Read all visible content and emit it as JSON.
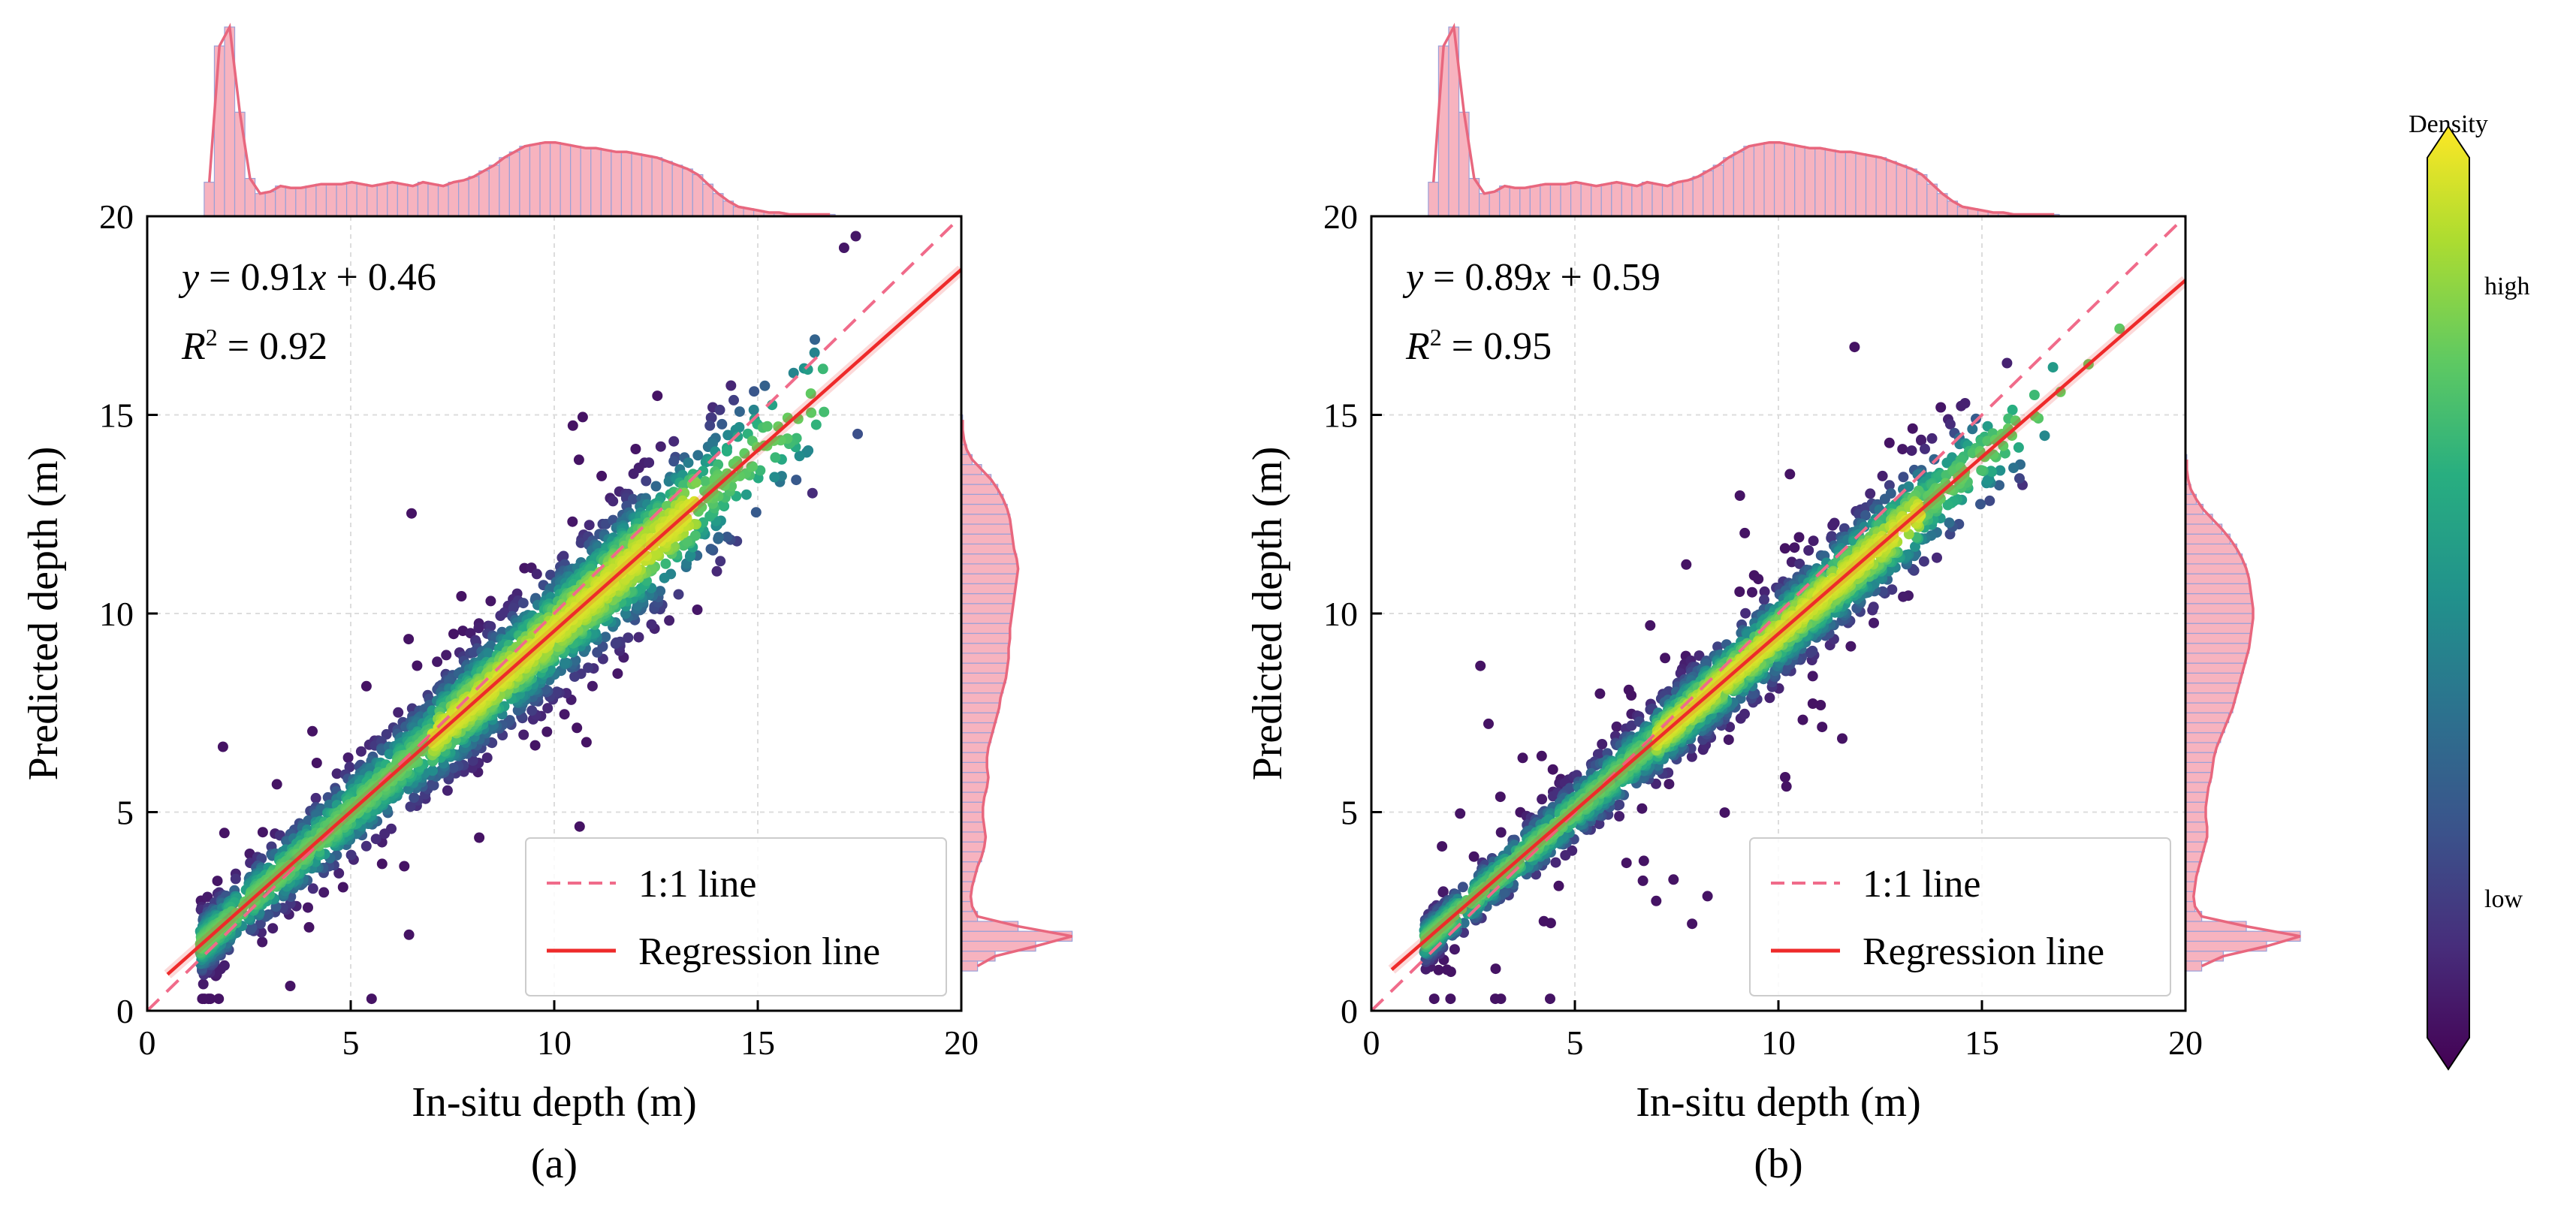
{
  "chart_data": [
    {
      "type": "scatter",
      "caption": "(a)",
      "xlabel": "In-situ depth (m)",
      "ylabel": "Predicted depth (m)",
      "xlim": [
        0,
        20
      ],
      "ylim": [
        0,
        20
      ],
      "xticks": [
        0,
        5,
        10,
        15,
        20
      ],
      "yticks": [
        0,
        5,
        10,
        15,
        20
      ],
      "grid": true,
      "equation": {
        "slope": "0.91",
        "intercept": "0.46",
        "r2": "0.92"
      },
      "regression": {
        "slope": 0.91,
        "intercept": 0.46,
        "x_range": [
          0.5,
          20
        ]
      },
      "identity_range": [
        0,
        20
      ],
      "scatter_seed": 11,
      "scatter_n": 2600,
      "noise": 0.75,
      "legend": {
        "position": "lower-right",
        "entries": [
          {
            "label": "1:1 line",
            "style": "dashed",
            "color": "#f06b8a"
          },
          {
            "label": "Regression line",
            "style": "solid",
            "color": "#ee2a2a"
          }
        ]
      },
      "marginal_x": {
        "bins_start": 1.4,
        "bin_width": 0.25,
        "counts": [
          0.18,
          0.9,
          1.0,
          0.55,
          0.2,
          0.12,
          0.13,
          0.16,
          0.15,
          0.15,
          0.16,
          0.17,
          0.17,
          0.17,
          0.18,
          0.17,
          0.16,
          0.17,
          0.18,
          0.17,
          0.16,
          0.18,
          0.17,
          0.16,
          0.18,
          0.19,
          0.21,
          0.24,
          0.27,
          0.31,
          0.34,
          0.37,
          0.38,
          0.39,
          0.39,
          0.38,
          0.37,
          0.36,
          0.36,
          0.35,
          0.34,
          0.34,
          0.33,
          0.32,
          0.31,
          0.29,
          0.27,
          0.25,
          0.22,
          0.17,
          0.12,
          0.08,
          0.05,
          0.04,
          0.03,
          0.02,
          0.02,
          0.01,
          0.01,
          0.01,
          0.01,
          0.01
        ]
      },
      "marginal_y": {
        "bins_start": 1.0,
        "bin_width": 0.25,
        "counts": [
          0.12,
          0.25,
          0.55,
          0.82,
          0.42,
          0.12,
          0.08,
          0.07,
          0.08,
          0.1,
          0.12,
          0.15,
          0.17,
          0.18,
          0.17,
          0.16,
          0.16,
          0.17,
          0.19,
          0.2,
          0.19,
          0.19,
          0.2,
          0.22,
          0.24,
          0.26,
          0.28,
          0.29,
          0.31,
          0.33,
          0.34,
          0.35,
          0.35,
          0.36,
          0.36,
          0.37,
          0.38,
          0.39,
          0.4,
          0.41,
          0.42,
          0.41,
          0.39,
          0.38,
          0.37,
          0.36,
          0.34,
          0.31,
          0.27,
          0.22,
          0.15,
          0.08,
          0.04,
          0.02,
          0.01,
          0.01
        ]
      }
    },
    {
      "type": "scatter",
      "caption": "(b)",
      "xlabel": "In-situ depth (m)",
      "ylabel": "Predicted depth (m)",
      "xlim": [
        0,
        20
      ],
      "ylim": [
        0,
        20
      ],
      "xticks": [
        0,
        5,
        10,
        15,
        20
      ],
      "yticks": [
        0,
        5,
        10,
        15,
        20
      ],
      "grid": true,
      "equation": {
        "slope": "0.89",
        "intercept": "0.59",
        "r2": "0.95"
      },
      "regression": {
        "slope": 0.89,
        "intercept": 0.59,
        "x_range": [
          0.5,
          20
        ]
      },
      "identity_range": [
        0,
        20
      ],
      "scatter_seed": 23,
      "scatter_n": 2600,
      "noise": 0.55,
      "legend": {
        "position": "lower-right",
        "entries": [
          {
            "label": "1:1 line",
            "style": "dashed",
            "color": "#f06b8a"
          },
          {
            "label": "Regression line",
            "style": "solid",
            "color": "#ee2a2a"
          }
        ]
      },
      "marginal_x": {
        "bins_start": 1.4,
        "bin_width": 0.25,
        "counts": [
          0.18,
          0.9,
          1.0,
          0.55,
          0.2,
          0.12,
          0.13,
          0.16,
          0.15,
          0.15,
          0.16,
          0.17,
          0.17,
          0.17,
          0.18,
          0.17,
          0.16,
          0.17,
          0.18,
          0.17,
          0.16,
          0.18,
          0.17,
          0.16,
          0.18,
          0.19,
          0.21,
          0.24,
          0.27,
          0.31,
          0.34,
          0.37,
          0.38,
          0.39,
          0.39,
          0.38,
          0.37,
          0.36,
          0.36,
          0.35,
          0.34,
          0.34,
          0.33,
          0.32,
          0.31,
          0.29,
          0.27,
          0.25,
          0.22,
          0.17,
          0.12,
          0.08,
          0.05,
          0.04,
          0.03,
          0.02,
          0.02,
          0.01,
          0.01,
          0.01,
          0.01,
          0.01
        ]
      },
      "marginal_y": {
        "bins_start": 1.0,
        "bin_width": 0.25,
        "counts": [
          0.12,
          0.28,
          0.6,
          0.85,
          0.45,
          0.12,
          0.07,
          0.06,
          0.07,
          0.08,
          0.1,
          0.12,
          0.14,
          0.16,
          0.16,
          0.15,
          0.15,
          0.16,
          0.17,
          0.19,
          0.2,
          0.21,
          0.23,
          0.26,
          0.29,
          0.32,
          0.35,
          0.37,
          0.39,
          0.41,
          0.43,
          0.45,
          0.47,
          0.48,
          0.49,
          0.5,
          0.5,
          0.49,
          0.48,
          0.47,
          0.45,
          0.42,
          0.38,
          0.33,
          0.27,
          0.2,
          0.13,
          0.08,
          0.04,
          0.02,
          0.01,
          0.01
        ]
      }
    }
  ],
  "colorbar": {
    "title": "Density",
    "high_label": "high",
    "low_label": "low",
    "colormap": "viridis"
  },
  "colors": {
    "identity_line": "#f06b8a",
    "regression_line": "#ee2a2a",
    "hist_fill": "#f7b3bf",
    "hist_line": "#9aa0d8",
    "kde_line": "#e8677e",
    "grid": "#dddddd"
  }
}
